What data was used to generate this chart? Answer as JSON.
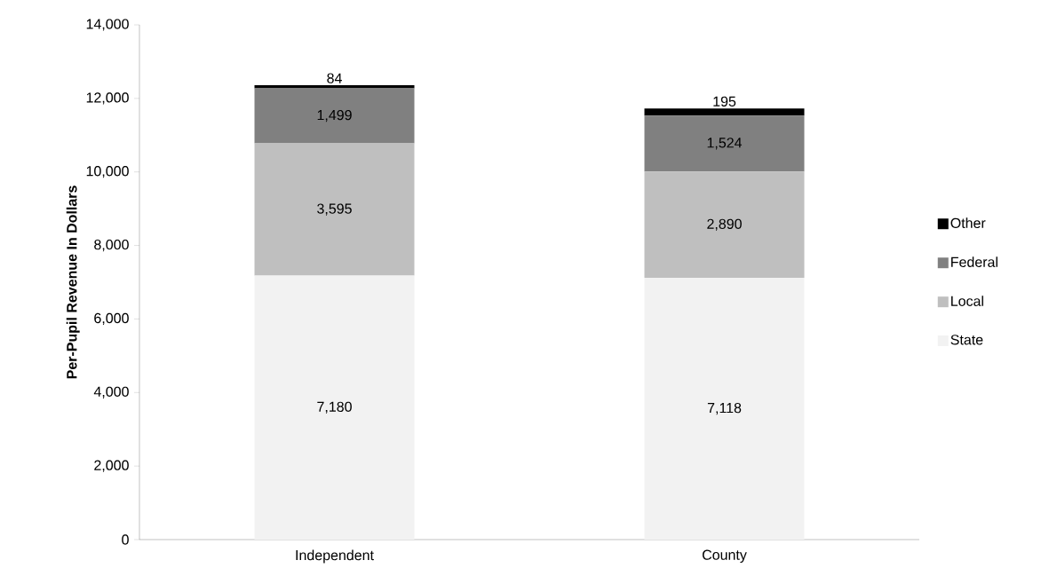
{
  "chart_data": {
    "type": "bar",
    "stacked": true,
    "categories": [
      "Independent",
      "County"
    ],
    "series": [
      {
        "name": "State",
        "color": "#f2f2f2",
        "values": [
          7180,
          7118
        ],
        "value_labels": [
          "7,180",
          "7,118"
        ]
      },
      {
        "name": "Local",
        "color": "#bfbfbf",
        "values": [
          3595,
          2890
        ],
        "value_labels": [
          "3,595",
          "2,890"
        ]
      },
      {
        "name": "Federal",
        "color": "#808080",
        "values": [
          1499,
          1524
        ],
        "value_labels": [
          "1,499",
          "1,524"
        ]
      },
      {
        "name": "Other",
        "color": "#000000",
        "values": [
          84,
          195
        ],
        "value_labels": [
          "84",
          "195"
        ]
      }
    ],
    "ylabel": "Per-Pupil Revenue In Dollars",
    "ylim": [
      0,
      14000
    ],
    "yticks": [
      {
        "value": 0,
        "label": "0"
      },
      {
        "value": 2000,
        "label": "2,000"
      },
      {
        "value": 4000,
        "label": "4,000"
      },
      {
        "value": 6000,
        "label": "6,000"
      },
      {
        "value": 8000,
        "label": "8,000"
      },
      {
        "value": 10000,
        "label": "10,000"
      },
      {
        "value": 12000,
        "label": "12,000"
      },
      {
        "value": 14000,
        "label": "14,000"
      }
    ],
    "legend": "right",
    "grid": false
  }
}
